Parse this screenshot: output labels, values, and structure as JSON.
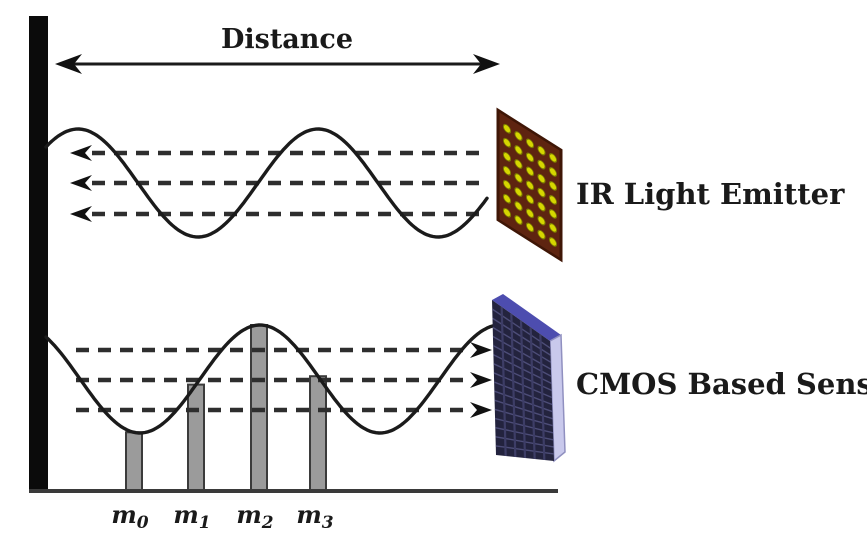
{
  "figure": {
    "background": "#ffffff",
    "distance": {
      "label": "Distance"
    },
    "emitter": {
      "label": "IR Light Emitter"
    },
    "sensor": {
      "label": "CMOS Based Sensor"
    },
    "samples": [
      {
        "base": "m",
        "sub": "0"
      },
      {
        "base": "m",
        "sub": "1"
      },
      {
        "base": "m",
        "sub": "2"
      },
      {
        "base": "m",
        "sub": "3"
      }
    ],
    "colors": {
      "wall": "#0b0b0b",
      "wave": "#1b1b1b",
      "dashed_ray": "#2e2e2e",
      "arrowhead": "#111111",
      "distance_arrow": "#1b1b1b",
      "baseline": "#3a3a3a",
      "bar_fill": "#9b9b9b",
      "bar_stroke": "#3b3b3b",
      "emitter_face": "#5e2410",
      "emitter_edge": "#3f1606",
      "emitter_dot": "#d6d600",
      "emitter_dot_edge": "#7c7c00",
      "sensor_face": "#23233e",
      "sensor_ridge": "#4d4d78",
      "sensor_column": "#3d3d66",
      "sensor_top": "#4d4daf",
      "sensor_side": "#c9c9ec",
      "sensor_side_edge": "#9090c0",
      "text": "#1a1a1a"
    }
  }
}
